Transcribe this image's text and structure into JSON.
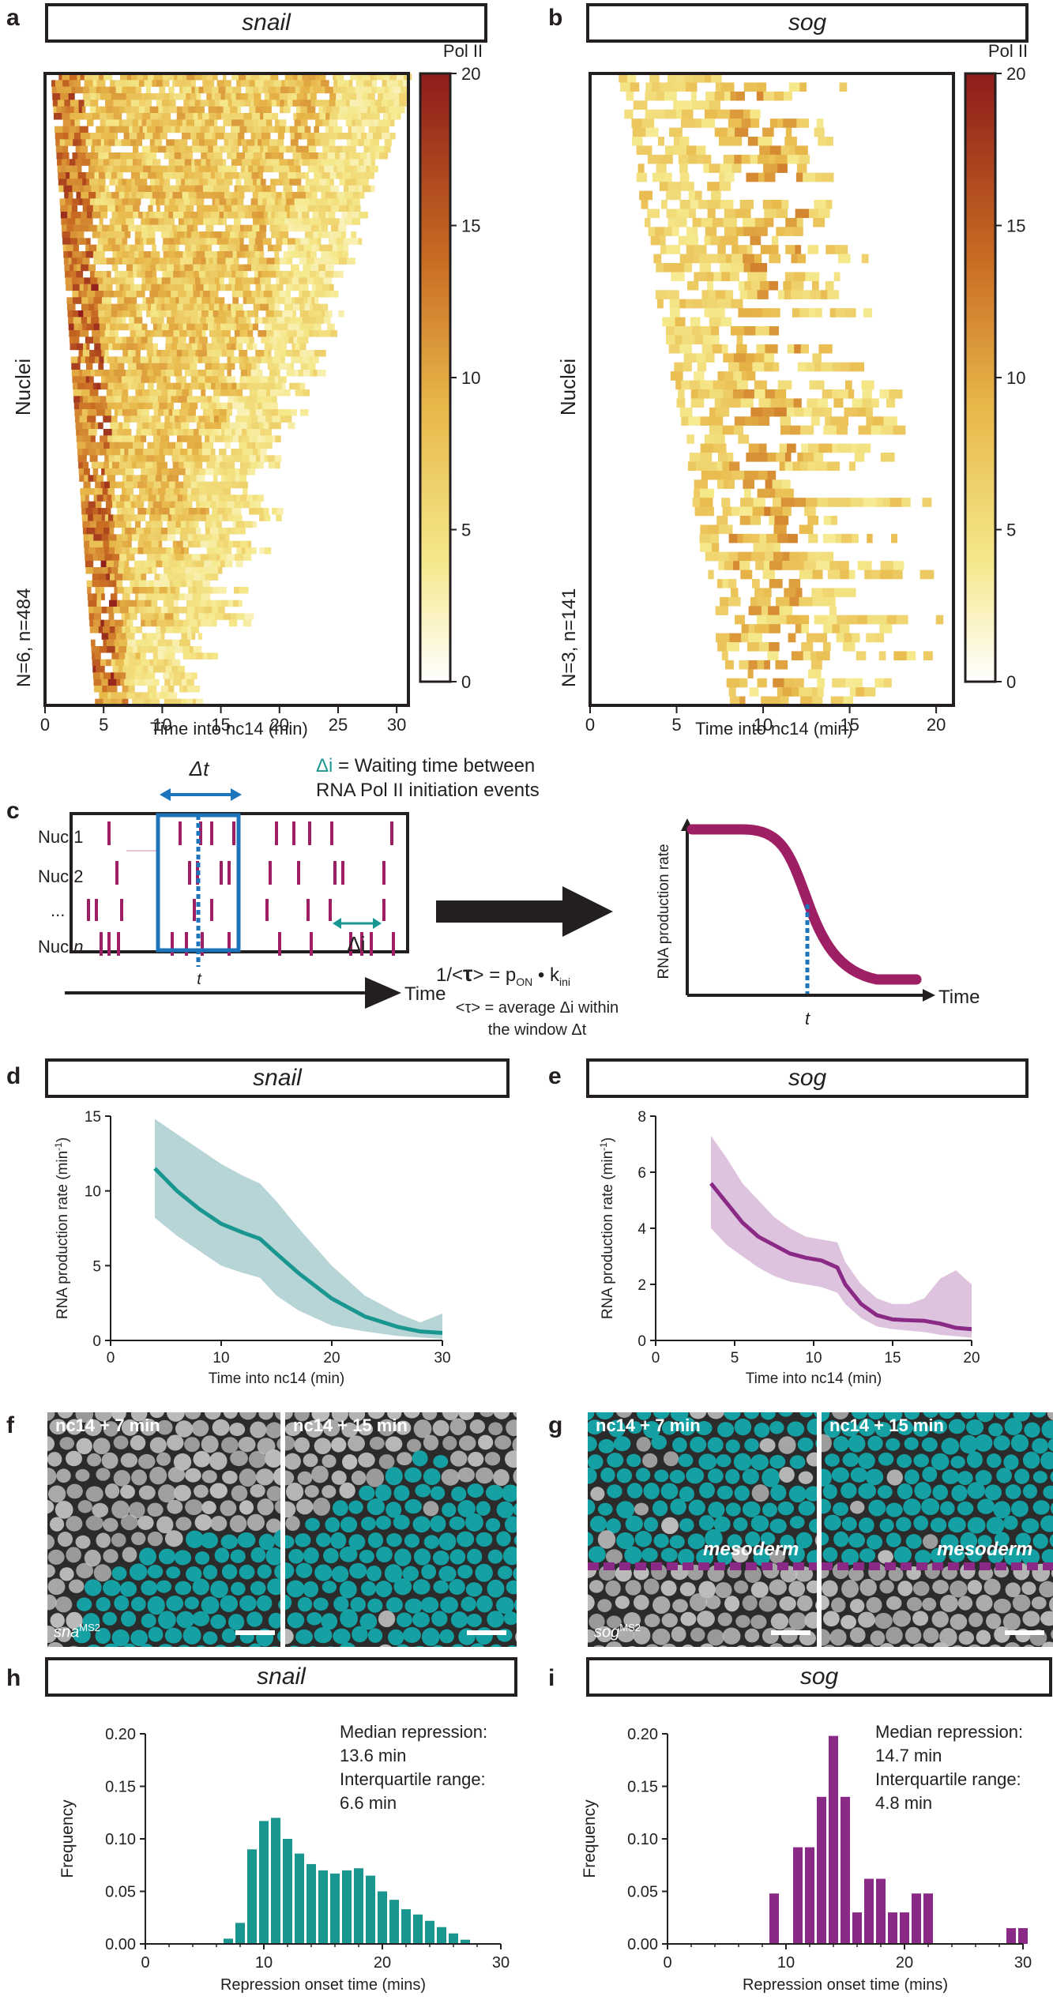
{
  "panels": {
    "a": "a",
    "b": "b",
    "c": "c",
    "d": "d",
    "e": "e",
    "f": "f",
    "g": "g",
    "h": "h",
    "i": "i"
  },
  "genes": {
    "snail": "snail",
    "sog": "sog"
  },
  "colors": {
    "teal": "#1a9690",
    "teal_band": "#b7d4d6",
    "purple": "#8a2a86",
    "purple_band": "#ddc3dd",
    "blue": "#1c75bc",
    "magenta": "#9e1f63",
    "cell_teal": "#15a1a3",
    "cell_gray": "#bdbdbd"
  },
  "heatmap_a": {
    "colorbar_title": "Pol II",
    "colorbar_ticks": [
      "20",
      "15",
      "10",
      "5",
      "0"
    ],
    "ylabel": "Nuclei",
    "annotation": "N=6, n=484",
    "xlabel": "Time into nc14 (min)",
    "xticks": [
      "0",
      "5",
      "10",
      "15",
      "20",
      "25",
      "30"
    ]
  },
  "heatmap_b": {
    "colorbar_title": "Pol II",
    "colorbar_ticks": [
      "20",
      "15",
      "10",
      "5",
      "0"
    ],
    "ylabel": "Nuclei",
    "annotation": "N=3, n=141",
    "xlabel": "Time into nc14 (min)",
    "xticks": [
      "0",
      "5",
      "10",
      "15",
      "20"
    ]
  },
  "schematic": {
    "delta_t": "Δt",
    "delta_i_def_sym": "Δi",
    "delta_i_def_text": " = Waiting time between",
    "delta_i_def_line2": "RNA Pol II initiation events",
    "rows": [
      "Nuc 1",
      "Nuc 2",
      "...",
      "Nuc "
    ],
    "row_n": "n",
    "t_label": "t",
    "delta_i": "Δi",
    "time_label": "Time",
    "eq_left": "1/<",
    "eq_tau": "τ",
    "eq_mid": "> = p",
    "eq_sub_on": "ON",
    "eq_dot": " • k",
    "eq_sub_ini": "ini",
    "tau_def_line1": "<τ> = average Δi within",
    "tau_def_line2": "the window Δt",
    "rate_ylabel": "RNA production rate",
    "rate_xlabel": "Time",
    "rate_t": "t"
  },
  "rate_d": {
    "ylabel": "RNA production rate (min",
    "ylabel_sup": "-1",
    "ylabel_end": ")",
    "xlabel": "Time into nc14 (min)",
    "xticks": [
      "0",
      "10",
      "20",
      "30"
    ],
    "yticks": [
      "0",
      "5",
      "10",
      "15"
    ]
  },
  "rate_e": {
    "ylabel": "RNA production rate (min",
    "ylabel_sup": "-1",
    "ylabel_end": ")",
    "xlabel": "Time into nc14 (min)",
    "xticks": [
      "0",
      "5",
      "10",
      "15",
      "20"
    ],
    "yticks": [
      "0",
      "2",
      "4",
      "6",
      "8"
    ]
  },
  "micro_f": {
    "left_title": "nc14 + 7 min",
    "right_title": "nc14 + 15 min",
    "tag": "sna",
    "tag_sup": "MS2"
  },
  "micro_g": {
    "left_title": "nc14 + 7 min",
    "right_title": "nc14 + 15 min",
    "tag": "sog",
    "tag_sup": "MS2",
    "mesoderm": "mesoderm"
  },
  "hist_h": {
    "ylabel": "Frequency",
    "xlabel": "Repression onset time (mins)",
    "xticks": [
      "0",
      "10",
      "20",
      "30"
    ],
    "yticks": [
      "0.00",
      "0.05",
      "0.10",
      "0.15",
      "0.20"
    ],
    "stats": [
      "Median repression:",
      "13.6 min",
      "Interquartile range:",
      "6.6 min"
    ]
  },
  "hist_i": {
    "ylabel": "Frequency",
    "xlabel": "Repression onset time (mins)",
    "xticks": [
      "0",
      "10",
      "20",
      "30"
    ],
    "yticks": [
      "0.00",
      "0.05",
      "0.10",
      "0.15",
      "0.20"
    ],
    "stats": [
      "Median repression:",
      "14.7 min",
      "Interquartile range:",
      "4.8 min"
    ]
  },
  "chart_data": [
    {
      "type": "heatmap",
      "panel": "a",
      "title": "snail",
      "xlabel": "Time into nc14 (min)",
      "ylabel": "Nuclei",
      "xlim": [
        0,
        31
      ],
      "colorbar_range": [
        0,
        20
      ],
      "nuclei": 484,
      "embryos": 6
    },
    {
      "type": "heatmap",
      "panel": "b",
      "title": "sog",
      "xlabel": "Time into nc14 (min)",
      "ylabel": "Nuclei",
      "xlim": [
        0,
        21
      ],
      "colorbar_range": [
        0,
        20
      ],
      "nuclei": 141,
      "embryos": 3
    },
    {
      "type": "line",
      "panel": "d",
      "title": "snail",
      "xlabel": "Time into nc14 (min)",
      "ylabel": "RNA production rate (min-1)",
      "xlim": [
        0,
        30
      ],
      "ylim": [
        0,
        15
      ],
      "x": [
        4,
        6,
        8,
        10,
        12,
        13.5,
        15,
        17,
        20,
        23,
        26,
        28,
        30
      ],
      "y": [
        11.5,
        10.0,
        8.8,
        7.8,
        7.2,
        6.8,
        5.8,
        4.5,
        2.8,
        1.6,
        0.9,
        0.6,
        0.5
      ],
      "upper": [
        14.8,
        13.8,
        12.8,
        11.8,
        11.0,
        10.5,
        9.3,
        7.5,
        5.0,
        3.0,
        1.8,
        1.2,
        1.8
      ],
      "lower": [
        8.2,
        7.0,
        6.0,
        5.0,
        4.5,
        4.2,
        3.0,
        2.0,
        1.0,
        0.6,
        0.3,
        0.2,
        0.1
      ]
    },
    {
      "type": "line",
      "panel": "e",
      "title": "sog",
      "xlabel": "Time into nc14 (min)",
      "ylabel": "RNA production rate (min-1)",
      "xlim": [
        0,
        20
      ],
      "ylim": [
        0,
        8
      ],
      "x": [
        3.5,
        4.5,
        5.5,
        6.5,
        7.5,
        8.5,
        9.5,
        10.5,
        11.5,
        12,
        13,
        14,
        15,
        16,
        17,
        18,
        19,
        20
      ],
      "y": [
        5.6,
        4.9,
        4.2,
        3.7,
        3.4,
        3.1,
        2.95,
        2.85,
        2.6,
        2.0,
        1.3,
        0.9,
        0.75,
        0.72,
        0.7,
        0.6,
        0.45,
        0.4
      ],
      "upper": [
        7.3,
        6.5,
        5.6,
        5.0,
        4.4,
        4.0,
        3.7,
        3.6,
        3.5,
        2.8,
        2.0,
        1.5,
        1.3,
        1.3,
        1.5,
        2.2,
        2.5,
        2.0
      ],
      "lower": [
        4.0,
        3.4,
        3.0,
        2.6,
        2.3,
        2.1,
        2.0,
        1.9,
        1.7,
        1.3,
        0.8,
        0.5,
        0.4,
        0.35,
        0.3,
        0.2,
        0.15,
        0.1
      ]
    },
    {
      "type": "bar",
      "panel": "h",
      "title": "snail",
      "xlabel": "Repression onset time (mins)",
      "ylabel": "Frequency",
      "xlim": [
        0,
        30
      ],
      "ylim": [
        0,
        0.2
      ],
      "x": [
        7,
        8,
        9,
        10,
        11,
        12,
        13,
        14,
        15,
        16,
        17,
        18,
        19,
        20,
        21,
        22,
        23,
        24,
        25,
        26,
        27
      ],
      "values": [
        0.005,
        0.02,
        0.09,
        0.117,
        0.12,
        0.1,
        0.086,
        0.076,
        0.07,
        0.067,
        0.07,
        0.072,
        0.065,
        0.05,
        0.042,
        0.033,
        0.028,
        0.022,
        0.016,
        0.01,
        0.004
      ]
    },
    {
      "type": "bar",
      "panel": "i",
      "title": "sog",
      "xlabel": "Repression onset time (mins)",
      "ylabel": "Frequency",
      "xlim": [
        0,
        30
      ],
      "ylim": [
        0,
        0.2
      ],
      "x": [
        9,
        11,
        12,
        13,
        14,
        15,
        16,
        17,
        18,
        19,
        20,
        21,
        22,
        29,
        30
      ],
      "values": [
        0.048,
        0.092,
        0.092,
        0.14,
        0.198,
        0.14,
        0.03,
        0.062,
        0.062,
        0.03,
        0.03,
        0.048,
        0.048,
        0.015,
        0.015
      ]
    }
  ]
}
